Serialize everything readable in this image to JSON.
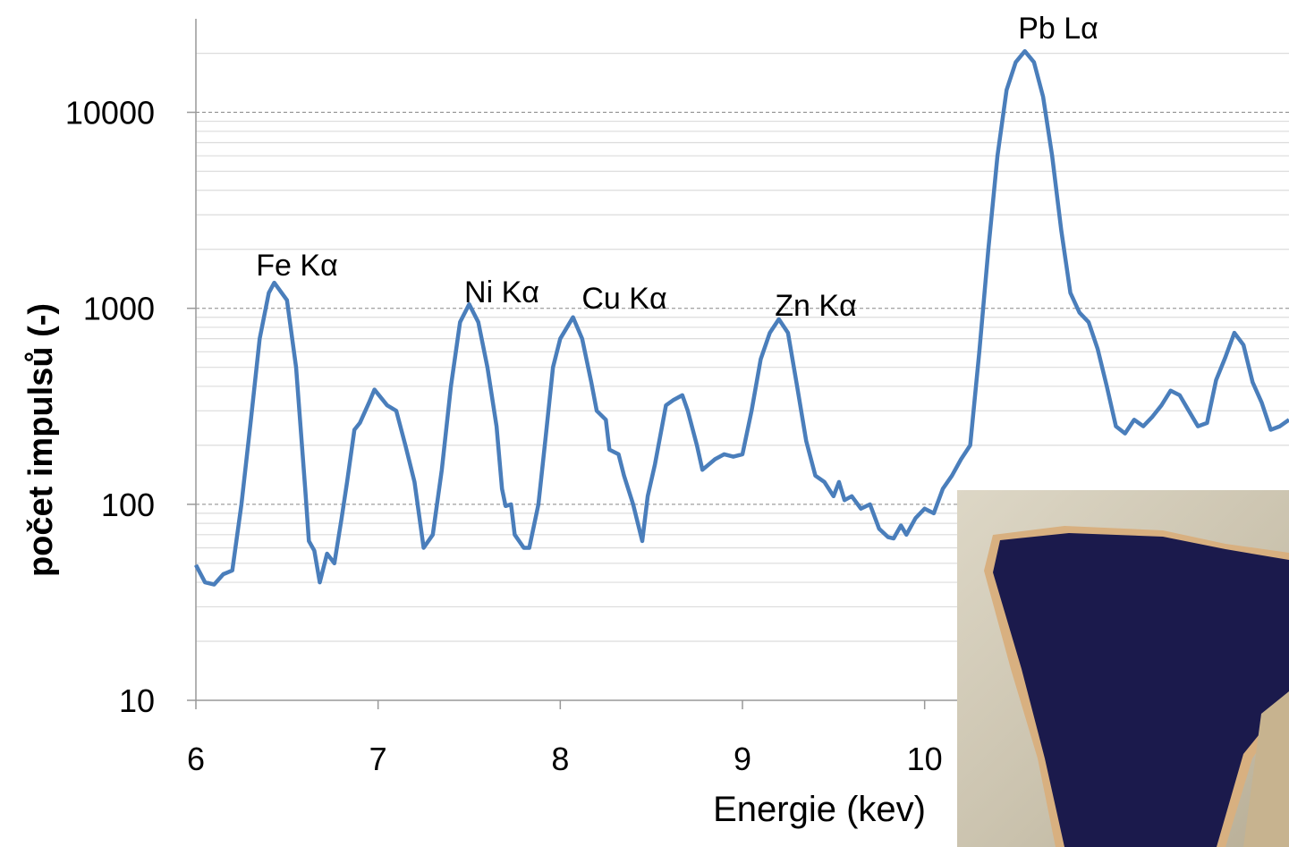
{
  "chart_data": {
    "type": "line",
    "y_label": "počet impulsů  (-)",
    "x_label": "Energie (kev)",
    "log_y": true,
    "grid": true,
    "xlim": [
      6,
      12
    ],
    "xticks": [
      6,
      7,
      8,
      9,
      10
    ],
    "ylim": [
      10,
      30000
    ],
    "yticks": [
      10,
      100,
      1000,
      10000
    ],
    "yticks_minor": [
      20,
      30,
      40,
      50,
      60,
      70,
      80,
      90,
      200,
      300,
      400,
      500,
      600,
      700,
      800,
      900,
      2000,
      3000,
      4000,
      5000,
      6000,
      7000,
      8000,
      9000,
      20000
    ],
    "annotations": [
      "Fe Kα",
      "Ni Kα",
      "Cu Kα",
      "Zn Kα",
      "Pb Lα"
    ],
    "series": [
      {
        "color": "#4a7ebb",
        "x": [
          6.0,
          6.05,
          6.1,
          6.15,
          6.2,
          6.25,
          6.3,
          6.35,
          6.4,
          6.43,
          6.5,
          6.55,
          6.6,
          6.62,
          6.65,
          6.68,
          6.72,
          6.76,
          6.8,
          6.83,
          6.87,
          6.9,
          6.95,
          6.98,
          7.05,
          7.1,
          7.15,
          7.2,
          7.25,
          7.3,
          7.35,
          7.4,
          7.45,
          7.5,
          7.55,
          7.6,
          7.65,
          7.68,
          7.7,
          7.73,
          7.75,
          7.8,
          7.83,
          7.88,
          7.92,
          7.96,
          8.0,
          8.07,
          8.12,
          8.17,
          8.2,
          8.25,
          8.27,
          8.32,
          8.35,
          8.4,
          8.45,
          8.48,
          8.52,
          8.58,
          8.62,
          8.67,
          8.7,
          8.75,
          8.78,
          8.85,
          8.9,
          8.95,
          9.0,
          9.05,
          9.1,
          9.15,
          9.2,
          9.25,
          9.3,
          9.35,
          9.4,
          9.45,
          9.5,
          9.53,
          9.56,
          9.6,
          9.65,
          9.7,
          9.75,
          9.8,
          9.83,
          9.87,
          9.9,
          9.95,
          10.0,
          10.05,
          10.1,
          10.15,
          10.2,
          10.25,
          10.3,
          10.35,
          10.4,
          10.45,
          10.5,
          10.55,
          10.6,
          10.65,
          10.7,
          10.75,
          10.8,
          10.85,
          10.9,
          10.95,
          11.0,
          11.05,
          11.1,
          11.15,
          11.2,
          11.25,
          11.3,
          11.35,
          11.4,
          11.45,
          11.5,
          11.55,
          11.6,
          11.65,
          11.7,
          11.75,
          11.8,
          11.85,
          11.9,
          11.95,
          12.0
        ],
        "values": [
          49,
          40,
          39,
          44,
          46,
          100,
          260,
          700,
          1200,
          1350,
          1100,
          500,
          120,
          65,
          58,
          40,
          56,
          50,
          85,
          130,
          240,
          260,
          330,
          385,
          320,
          300,
          200,
          130,
          60,
          70,
          150,
          400,
          850,
          1050,
          850,
          500,
          250,
          120,
          98,
          100,
          70,
          60,
          60,
          100,
          220,
          500,
          700,
          900,
          700,
          420,
          300,
          270,
          190,
          180,
          140,
          100,
          65,
          110,
          160,
          320,
          340,
          360,
          300,
          200,
          150,
          170,
          180,
          175,
          180,
          300,
          550,
          750,
          880,
          750,
          400,
          210,
          140,
          130,
          110,
          130,
          105,
          110,
          95,
          100,
          75,
          68,
          67,
          78,
          70,
          85,
          95,
          90,
          120,
          140,
          170,
          200,
          600,
          2000,
          6000,
          13000,
          18000,
          20500,
          18000,
          12000,
          6000,
          2500,
          1200,
          950,
          850,
          620,
          400,
          250,
          230,
          270,
          250,
          280,
          320,
          380,
          360,
          300,
          250,
          260,
          430,
          560,
          750,
          650,
          420,
          330,
          240,
          250,
          270
        ]
      }
    ]
  }
}
